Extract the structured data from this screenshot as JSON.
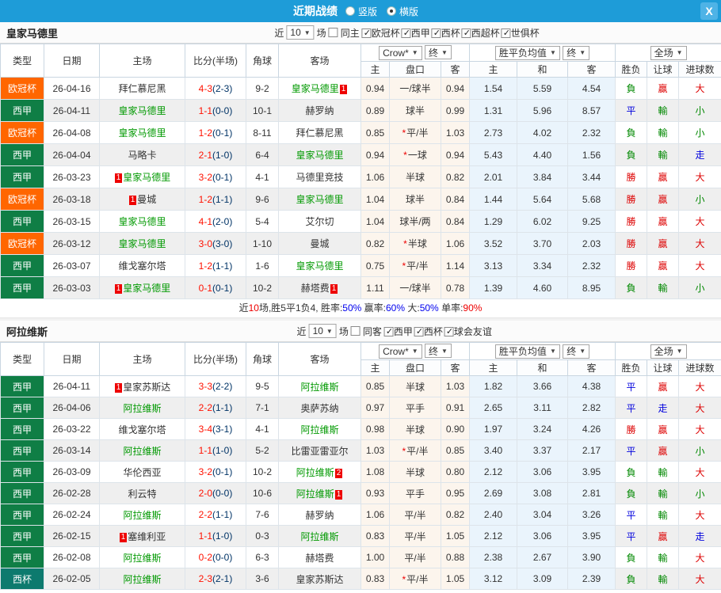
{
  "topbar": {
    "title": "近期战绩",
    "radios": [
      {
        "label": "竖版",
        "selected": false
      },
      {
        "label": "横版",
        "selected": true
      }
    ],
    "close_label": "X"
  },
  "table_header": {
    "cols": [
      "类型",
      "日期",
      "主场",
      "比分(半场)",
      "角球",
      "客场"
    ],
    "group1_select": "Crow*",
    "group1_final": "终",
    "group2_select": "胜平负均值",
    "group2_final": "终",
    "group3_select": "全场",
    "sub": [
      "主",
      "盘口",
      "客",
      "主",
      "和",
      "客",
      "胜负",
      "让球",
      "进球数"
    ]
  },
  "league_colors": {
    "欧冠杯": "#ff6600",
    "西甲": "#0f7e45",
    "西杯": "#0d7a6e"
  },
  "result_colors": {
    "勝": "#d00",
    "贏": "#d00",
    "大": "#d00",
    "平": "#00d",
    "走": "#00d",
    "負": "#080",
    "輸": "#080",
    "小": "#080"
  },
  "sections": [
    {
      "team": "皇家马德里",
      "filters": {
        "prefix": "近",
        "count": "10",
        "suffix": "场",
        "same_label": "同主",
        "same_checked": false,
        "leagues": [
          {
            "label": "欧冠杯",
            "checked": true
          },
          {
            "label": "西甲",
            "checked": true
          },
          {
            "label": "西杯",
            "checked": true
          },
          {
            "label": "西超杯",
            "checked": true
          },
          {
            "label": "世俱杯",
            "checked": true
          }
        ]
      },
      "rows": [
        {
          "league": "欧冠杯",
          "date": "26-04-16",
          "home": {
            "name": "拜仁慕尼黑"
          },
          "score": "4-3",
          "half": "(2-3)",
          "corner": "9-2",
          "away": {
            "name": "皇家马德里",
            "green": true,
            "rank": "1"
          },
          "o1": "0.94",
          "hcap": "一/球半",
          "o2": "0.94",
          "a1": "1.54",
          "a2": "5.59",
          "a3": "4.54",
          "r1": "負",
          "r2": "贏",
          "r3": "大"
        },
        {
          "league": "西甲",
          "date": "26-04-11",
          "home": {
            "name": "皇家马德里",
            "green": true
          },
          "score": "1-1",
          "half": "(0-0)",
          "corner": "10-1",
          "away": {
            "name": "赫罗纳"
          },
          "o1": "0.89",
          "hcap": "球半",
          "o2": "0.99",
          "a1": "1.31",
          "a2": "5.96",
          "a3": "8.57",
          "r1": "平",
          "r2": "輸",
          "r3": "小"
        },
        {
          "league": "欧冠杯",
          "date": "26-04-08",
          "home": {
            "name": "皇家马德里",
            "green": true
          },
          "score": "1-2",
          "half": "(0-1)",
          "corner": "8-11",
          "away": {
            "name": "拜仁慕尼黑"
          },
          "o1": "0.85",
          "star": true,
          "hcap": "平/半",
          "o2": "1.03",
          "a1": "2.73",
          "a2": "4.02",
          "a3": "2.32",
          "r1": "負",
          "r2": "輸",
          "r3": "小"
        },
        {
          "league": "西甲",
          "date": "26-04-04",
          "home": {
            "name": "马略卡"
          },
          "score": "2-1",
          "half": "(1-0)",
          "corner": "6-4",
          "away": {
            "name": "皇家马德里",
            "green": true
          },
          "o1": "0.94",
          "star": true,
          "hcap": "一球",
          "o2": "0.94",
          "a1": "5.43",
          "a2": "4.40",
          "a3": "1.56",
          "r1": "負",
          "r2": "輸",
          "r3": "走"
        },
        {
          "league": "西甲",
          "date": "26-03-23",
          "home": {
            "name": "皇家马德里",
            "green": true,
            "rank": "1"
          },
          "score": "3-2",
          "half": "(0-1)",
          "corner": "4-1",
          "away": {
            "name": "马德里竞技"
          },
          "o1": "1.06",
          "hcap": "半球",
          "o2": "0.82",
          "a1": "2.01",
          "a2": "3.84",
          "a3": "3.44",
          "r1": "勝",
          "r2": "贏",
          "r3": "大"
        },
        {
          "league": "欧冠杯",
          "date": "26-03-18",
          "home": {
            "name": "曼城",
            "rank": "1"
          },
          "score": "1-2",
          "half": "(1-1)",
          "corner": "9-6",
          "away": {
            "name": "皇家马德里",
            "green": true
          },
          "o1": "1.04",
          "hcap": "球半",
          "o2": "0.84",
          "a1": "1.44",
          "a2": "5.64",
          "a3": "5.68",
          "r1": "勝",
          "r2": "贏",
          "r3": "小"
        },
        {
          "league": "西甲",
          "date": "26-03-15",
          "home": {
            "name": "皇家马德里",
            "green": true
          },
          "score": "4-1",
          "half": "(2-0)",
          "corner": "5-4",
          "away": {
            "name": "艾尔切"
          },
          "o1": "1.04",
          "hcap": "球半/两",
          "o2": "0.84",
          "a1": "1.29",
          "a2": "6.02",
          "a3": "9.25",
          "r1": "勝",
          "r2": "贏",
          "r3": "大"
        },
        {
          "league": "欧冠杯",
          "date": "26-03-12",
          "home": {
            "name": "皇家马德里",
            "green": true
          },
          "score": "3-0",
          "half": "(3-0)",
          "corner": "1-10",
          "away": {
            "name": "曼城"
          },
          "o1": "0.82",
          "star": true,
          "hcap": "半球",
          "o2": "1.06",
          "a1": "3.52",
          "a2": "3.70",
          "a3": "2.03",
          "r1": "勝",
          "r2": "贏",
          "r3": "大"
        },
        {
          "league": "西甲",
          "date": "26-03-07",
          "home": {
            "name": "维戈塞尔塔"
          },
          "score": "1-2",
          "half": "(1-1)",
          "corner": "1-6",
          "away": {
            "name": "皇家马德里",
            "green": true
          },
          "o1": "0.75",
          "star": true,
          "hcap": "平/半",
          "o2": "1.14",
          "a1": "3.13",
          "a2": "3.34",
          "a3": "2.32",
          "r1": "勝",
          "r2": "贏",
          "r3": "大"
        },
        {
          "league": "西甲",
          "date": "26-03-03",
          "home": {
            "name": "皇家马德里",
            "green": true,
            "rank": "1"
          },
          "score": "0-1",
          "half": "(0-1)",
          "corner": "10-2",
          "away": {
            "name": "赫塔费",
            "rank": "1"
          },
          "o1": "1.11",
          "hcap": "一/球半",
          "o2": "0.78",
          "a1": "1.39",
          "a2": "4.60",
          "a3": "8.95",
          "r1": "負",
          "r2": "輸",
          "r3": "小"
        }
      ],
      "summary": [
        {
          "t": "近",
          "c": "k"
        },
        {
          "t": "10",
          "c": "r"
        },
        {
          "t": "场,胜5平1负4, 胜率:",
          "c": "k"
        },
        {
          "t": "50%",
          "c": "b"
        },
        {
          "t": " 赢率:",
          "c": "k"
        },
        {
          "t": "60%",
          "c": "b"
        },
        {
          "t": " 大:",
          "c": "k"
        },
        {
          "t": "50%",
          "c": "b"
        },
        {
          "t": " 单率:",
          "c": "k"
        },
        {
          "t": "90%",
          "c": "r"
        }
      ]
    },
    {
      "team": "阿拉维斯",
      "filters": {
        "prefix": "近",
        "count": "10",
        "suffix": "场",
        "same_label": "同客",
        "same_checked": false,
        "leagues": [
          {
            "label": "西甲",
            "checked": true
          },
          {
            "label": "西杯",
            "checked": true
          },
          {
            "label": "球会友谊",
            "checked": true
          }
        ]
      },
      "rows": [
        {
          "league": "西甲",
          "date": "26-04-11",
          "home": {
            "name": "皇家苏斯达",
            "rank": "1"
          },
          "score": "3-3",
          "half": "(2-2)",
          "corner": "9-5",
          "away": {
            "name": "阿拉维斯",
            "green": true
          },
          "o1": "0.85",
          "hcap": "半球",
          "o2": "1.03",
          "a1": "1.82",
          "a2": "3.66",
          "a3": "4.38",
          "r1": "平",
          "r2": "贏",
          "r3": "大"
        },
        {
          "league": "西甲",
          "date": "26-04-06",
          "home": {
            "name": "阿拉维斯",
            "green": true
          },
          "score": "2-2",
          "half": "(1-1)",
          "corner": "7-1",
          "away": {
            "name": "奥萨苏纳"
          },
          "o1": "0.97",
          "hcap": "平手",
          "o2": "0.91",
          "a1": "2.65",
          "a2": "3.11",
          "a3": "2.82",
          "r1": "平",
          "r2": "走",
          "r3": "大"
        },
        {
          "league": "西甲",
          "date": "26-03-22",
          "home": {
            "name": "维戈塞尔塔"
          },
          "score": "3-4",
          "half": "(3-1)",
          "corner": "4-1",
          "away": {
            "name": "阿拉维斯",
            "green": true
          },
          "o1": "0.98",
          "hcap": "半球",
          "o2": "0.90",
          "a1": "1.97",
          "a2": "3.24",
          "a3": "4.26",
          "r1": "勝",
          "r2": "贏",
          "r3": "大"
        },
        {
          "league": "西甲",
          "date": "26-03-14",
          "home": {
            "name": "阿拉维斯",
            "green": true
          },
          "score": "1-1",
          "half": "(1-0)",
          "corner": "5-2",
          "away": {
            "name": "比雷亚雷亚尔"
          },
          "o1": "1.03",
          "star": true,
          "hcap": "平/半",
          "o2": "0.85",
          "a1": "3.40",
          "a2": "3.37",
          "a3": "2.17",
          "r1": "平",
          "r2": "贏",
          "r3": "小"
        },
        {
          "league": "西甲",
          "date": "26-03-09",
          "home": {
            "name": "华伦西亚"
          },
          "score": "3-2",
          "half": "(0-1)",
          "corner": "10-2",
          "away": {
            "name": "阿拉维斯",
            "green": true,
            "rank": "2"
          },
          "o1": "1.08",
          "hcap": "半球",
          "o2": "0.80",
          "a1": "2.12",
          "a2": "3.06",
          "a3": "3.95",
          "r1": "負",
          "r2": "輸",
          "r3": "大"
        },
        {
          "league": "西甲",
          "date": "26-02-28",
          "home": {
            "name": "利云特"
          },
          "score": "2-0",
          "half": "(0-0)",
          "corner": "10-6",
          "away": {
            "name": "阿拉维斯",
            "green": true,
            "rank": "1"
          },
          "o1": "0.93",
          "hcap": "平手",
          "o2": "0.95",
          "a1": "2.69",
          "a2": "3.08",
          "a3": "2.81",
          "r1": "負",
          "r2": "輸",
          "r3": "小"
        },
        {
          "league": "西甲",
          "date": "26-02-24",
          "home": {
            "name": "阿拉维斯",
            "green": true
          },
          "score": "2-2",
          "half": "(1-1)",
          "corner": "7-6",
          "away": {
            "name": "赫罗纳"
          },
          "o1": "1.06",
          "hcap": "平/半",
          "o2": "0.82",
          "a1": "2.40",
          "a2": "3.04",
          "a3": "3.26",
          "r1": "平",
          "r2": "輸",
          "r3": "大"
        },
        {
          "league": "西甲",
          "date": "26-02-15",
          "home": {
            "name": "塞维利亚",
            "rank": "1"
          },
          "score": "1-1",
          "half": "(1-0)",
          "corner": "0-3",
          "away": {
            "name": "阿拉维斯",
            "green": true
          },
          "o1": "0.83",
          "hcap": "平/半",
          "o2": "1.05",
          "a1": "2.12",
          "a2": "3.06",
          "a3": "3.95",
          "r1": "平",
          "r2": "贏",
          "r3": "走"
        },
        {
          "league": "西甲",
          "date": "26-02-08",
          "home": {
            "name": "阿拉维斯",
            "green": true
          },
          "score": "0-2",
          "half": "(0-0)",
          "corner": "6-3",
          "away": {
            "name": "赫塔费"
          },
          "o1": "1.00",
          "hcap": "平/半",
          "o2": "0.88",
          "a1": "2.38",
          "a2": "2.67",
          "a3": "3.90",
          "r1": "負",
          "r2": "輸",
          "r3": "大"
        },
        {
          "league": "西杯",
          "date": "26-02-05",
          "home": {
            "name": "阿拉维斯",
            "green": true
          },
          "score": "2-3",
          "half": "(2-1)",
          "corner": "3-6",
          "away": {
            "name": "皇家苏斯达"
          },
          "o1": "0.83",
          "star": true,
          "hcap": "平/半",
          "o2": "1.05",
          "a1": "3.12",
          "a2": "3.09",
          "a3": "2.39",
          "r1": "負",
          "r2": "輸",
          "r3": "大"
        }
      ],
      "summary": []
    }
  ]
}
